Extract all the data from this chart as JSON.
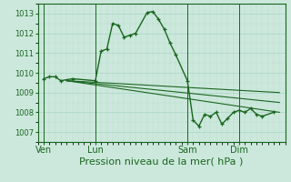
{
  "background_color": "#cce8dc",
  "grid_color": "#aad4c4",
  "line_color": "#1a6620",
  "title": "Pression niveau de la mer( hPa )",
  "ylabel_ticks": [
    1007,
    1008,
    1009,
    1010,
    1011,
    1012,
    1013
  ],
  "x_tick_labels": [
    "Ven",
    "Lun",
    "Sam",
    "Dim"
  ],
  "x_tick_positions": [
    0,
    9,
    25,
    34
  ],
  "xlim": [
    -1,
    42
  ],
  "ylim": [
    1006.5,
    1013.5
  ],
  "main_series_x": [
    0,
    1,
    2,
    3,
    5,
    9,
    10,
    11,
    12,
    13,
    14,
    15,
    16,
    18,
    19,
    20,
    21,
    22,
    23,
    25,
    26,
    27,
    28,
    29,
    30,
    31,
    32,
    33,
    34,
    35,
    36,
    37,
    38,
    40
  ],
  "main_series_y": [
    1009.7,
    1009.8,
    1009.8,
    1009.6,
    1009.7,
    1009.6,
    1011.1,
    1011.2,
    1012.5,
    1012.4,
    1011.8,
    1011.9,
    1012.0,
    1013.05,
    1013.1,
    1012.7,
    1012.2,
    1011.5,
    1010.9,
    1009.6,
    1007.6,
    1007.3,
    1007.9,
    1007.8,
    1008.0,
    1007.4,
    1007.7,
    1008.0,
    1008.1,
    1008.0,
    1008.2,
    1007.9,
    1007.8,
    1008.0
  ],
  "trend_lines": [
    {
      "x": [
        4,
        41
      ],
      "y": [
        1009.6,
        1008.0
      ]
    },
    {
      "x": [
        4,
        41
      ],
      "y": [
        1009.6,
        1008.5
      ]
    },
    {
      "x": [
        4,
        41
      ],
      "y": [
        1009.6,
        1009.0
      ]
    }
  ],
  "ylabel_fontsize": 6,
  "xlabel_fontsize": 8,
  "xtick_fontsize": 7
}
